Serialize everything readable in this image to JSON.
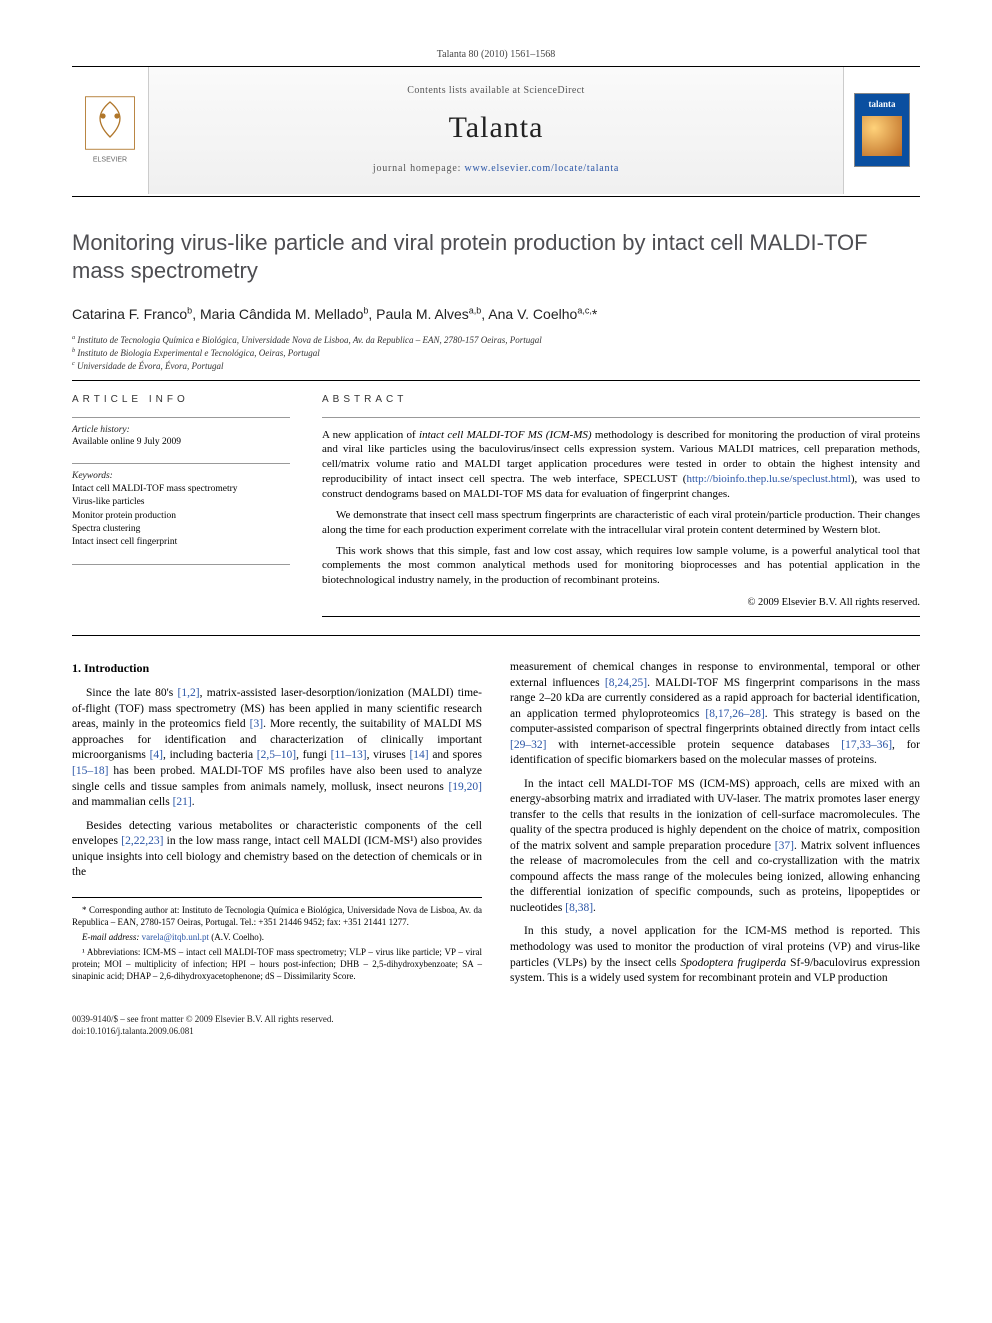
{
  "header": {
    "citation": "Talanta 80 (2010) 1561–1568",
    "contents_line": "Contents lists available at",
    "contents_link": "ScienceDirect",
    "journal": "Talanta",
    "homepage_label": "journal homepage:",
    "homepage_url": "www.elsevier.com/locate/talanta",
    "publisher": "ELSEVIER",
    "cover_label": "talanta"
  },
  "article": {
    "title": "Monitoring virus-like particle and viral protein production by intact cell MALDI-TOF mass spectrometry",
    "authors_html": "Catarina F. Franco<sup>b</sup>, Maria Cândida M. Mellado<sup>b</sup>, Paula M. Alves<sup>a,b</sup>, Ana V. Coelho<sup>a,c,</sup>*",
    "affiliations": [
      "a Instituto de Tecnologia Química e Biológica, Universidade Nova de Lisboa, Av. da Republica – EAN, 2780-157 Oeiras, Portugal",
      "b Instituto de Biologia Experimental e Tecnológica, Oeiras, Portugal",
      "c Universidade de Évora, Évora, Portugal"
    ]
  },
  "info": {
    "heading": "article info",
    "history_label": "Article history:",
    "history_value": "Available online 9 July 2009",
    "keywords_label": "Keywords:",
    "keywords": [
      "Intact cell MALDI-TOF mass spectrometry",
      "Virus-like particles",
      "Monitor protein production",
      "Spectra clustering",
      "Intact insect cell fingerprint"
    ]
  },
  "abstract": {
    "heading": "abstract",
    "p1_pre": "A new application of ",
    "p1_em": "intact cell MALDI-TOF MS (ICM-MS)",
    "p1_post": " methodology is described for monitoring the production of viral proteins and viral like particles using the baculovirus/insect cells expression system. Various MALDI matrices, cell preparation methods, cell/matrix volume ratio and MALDI target application procedures were tested in order to obtain the highest intensity and reproducibility of intact insect cell spectra. The web interface, SPECLUST (",
    "p1_url": "http://bioinfo.thep.lu.se/speclust.html",
    "p1_end": "), was used to construct dendograms based on MALDI-TOF MS data for evaluation of fingerprint changes.",
    "p2": "We demonstrate that insect cell mass spectrum fingerprints are characteristic of each viral protein/particle production. Their changes along the time for each production experiment correlate with the intracellular viral protein content determined by Western blot.",
    "p3": "This work shows that this simple, fast and low cost assay, which requires low sample volume, is a powerful analytical tool that complements the most common analytical methods used for monitoring bioprocesses and has potential application in the biotechnological industry namely, in the production of recombinant proteins.",
    "copyright": "© 2009 Elsevier B.V. All rights reserved."
  },
  "body": {
    "section_heading": "1. Introduction",
    "left_p1": "Since the late 80's [1,2], matrix-assisted laser-desorption/ionization (MALDI) time-of-flight (TOF) mass spectrometry (MS) has been applied in many scientific research areas, mainly in the proteomics field [3]. More recently, the suitability of MALDI MS approaches for identification and characterization of clinically important microorganisms [4], including bacteria [2,5–10], fungi [11–13], viruses [14] and spores [15–18] has been probed. MALDI-TOF MS profiles have also been used to analyze single cells and tissue samples from animals namely, mollusk, insect neurons [19,20] and mammalian cells [21].",
    "left_p2": "Besides detecting various metabolites or characteristic components of the cell envelopes [2,22,23] in the low mass range, intact cell MALDI (ICM-MS¹) also provides unique insights into cell biology and chemistry based on the detection of chemicals or in the",
    "right_p1": "measurement of chemical changes in response to environmental, temporal or other external influences [8,24,25]. MALDI-TOF MS fingerprint comparisons in the mass range 2–20 kDa are currently considered as a rapid approach for bacterial identification, an application termed phyloproteomics [8,17,26–28]. This strategy is based on the computer-assisted comparison of spectral fingerprints obtained directly from intact cells [29–32] with internet-accessible protein sequence databases [17,33–36], for identification of specific biomarkers based on the molecular masses of proteins.",
    "right_p2": "In the intact cell MALDI-TOF MS (ICM-MS) approach, cells are mixed with an energy-absorbing matrix and irradiated with UV-laser. The matrix promotes laser energy transfer to the cells that results in the ionization of cell-surface macromolecules. The quality of the spectra produced is highly dependent on the choice of matrix, composition of the matrix solvent and sample preparation procedure [37]. Matrix solvent influences the release of macromolecules from the cell and co-crystallization with the matrix compound affects the mass range of the molecules being ionized, allowing enhancing the differential ionization of specific compounds, such as proteins, lipopeptides or nucleotides [8,38].",
    "right_p3_a": "In this study, a novel application for the ICM-MS method is reported. This methodology was used to monitor the production of viral proteins (VP) and virus-like particles (VLPs) by the insect cells ",
    "right_p3_em": "Spodoptera frugiperda",
    "right_p3_b": " Sf-9/baculovirus expression system. This is a widely used system for recombinant protein and VLP production"
  },
  "footnotes": {
    "corr_label": "* Corresponding author at: Instituto de Tecnologia Química e Biológica, Universidade Nova de Lisboa, Av. da Republica – EAN, 2780-157 Oeiras, Portugal. Tel.: +351 21446 9452; fax: +351 21441 1277.",
    "email_label": "E-mail address:",
    "email": "varela@itqb.unl.pt",
    "email_who": "(A.V. Coelho).",
    "abbrev": "¹ Abbreviations: ICM-MS – intact cell MALDI-TOF mass spectrometry; VLP – virus like particle; VP – viral protein; MOI – multiplicity of infection; HPI – hours post-infection; DHB – 2,5-dihydroxybenzoate; SA – sinapinic acid; DHAP – 2,6-dihydroxyacetophenone; dS – Dissimilarity Score."
  },
  "footer": {
    "left1": "0039-9140/$ – see front matter © 2009 Elsevier B.V. All rights reserved.",
    "left2": "doi:10.1016/j.talanta.2009.06.081"
  },
  "colors": {
    "link": "#2a55a6",
    "title_gray": "#4e4e52",
    "cover_blue": "#0a4fa0"
  }
}
